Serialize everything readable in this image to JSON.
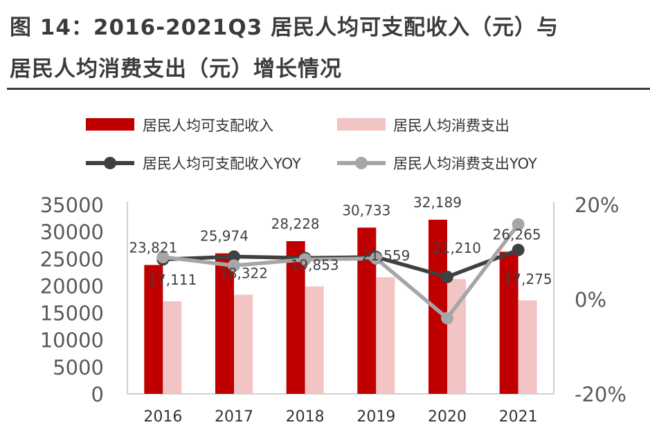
{
  "title_line1": "图 14：2016-2021Q3 居民人均可支配收入（元）与",
  "title_line2": "居民人均消费支出（元）增长情况",
  "colors": {
    "income_bar": "#c00000",
    "consumption_bar": "#f2c4c4",
    "income_yoy": "#404040",
    "consumption_yoy": "#a6a6a6",
    "axis_text": "#595959"
  },
  "chart_data": {
    "type": "bar",
    "categories": [
      "2016",
      "2017",
      "2018",
      "2019",
      "2020",
      "2021"
    ],
    "series": [
      {
        "name": "居民人均可支配收入",
        "kind": "bar",
        "axis": "left",
        "values": [
          23821,
          25974,
          28228,
          30733,
          32189,
          26265
        ],
        "labels": [
          "23,821",
          "25,974",
          "28,228",
          "30,733",
          "32,189",
          "26,265"
        ]
      },
      {
        "name": "居民人均消费支出",
        "kind": "bar",
        "axis": "left",
        "values": [
          17111,
          18322,
          19853,
          21559,
          21210,
          17275
        ],
        "labels": [
          "17,111",
          "18,322",
          "19,853",
          "21,559",
          "21,210",
          "17,275"
        ]
      },
      {
        "name": "居民人均可支配收入YOY",
        "kind": "line",
        "axis": "right",
        "values": [
          0.084,
          0.09,
          0.087,
          0.089,
          0.047,
          0.104
        ]
      },
      {
        "name": "居民人均消费支出YOY",
        "kind": "line",
        "axis": "right",
        "values": [
          0.089,
          0.071,
          0.084,
          0.086,
          -0.04,
          0.158
        ]
      }
    ],
    "y_left": {
      "min": 0,
      "max": 35000,
      "ticks": [
        "0",
        "5000",
        "10000",
        "15000",
        "20000",
        "25000",
        "30000",
        "35000"
      ]
    },
    "y_right": {
      "min": -0.2,
      "max": 0.2,
      "ticks": [
        "-20%",
        "0%",
        "20%"
      ]
    },
    "legend_position": "top",
    "grid": false
  }
}
